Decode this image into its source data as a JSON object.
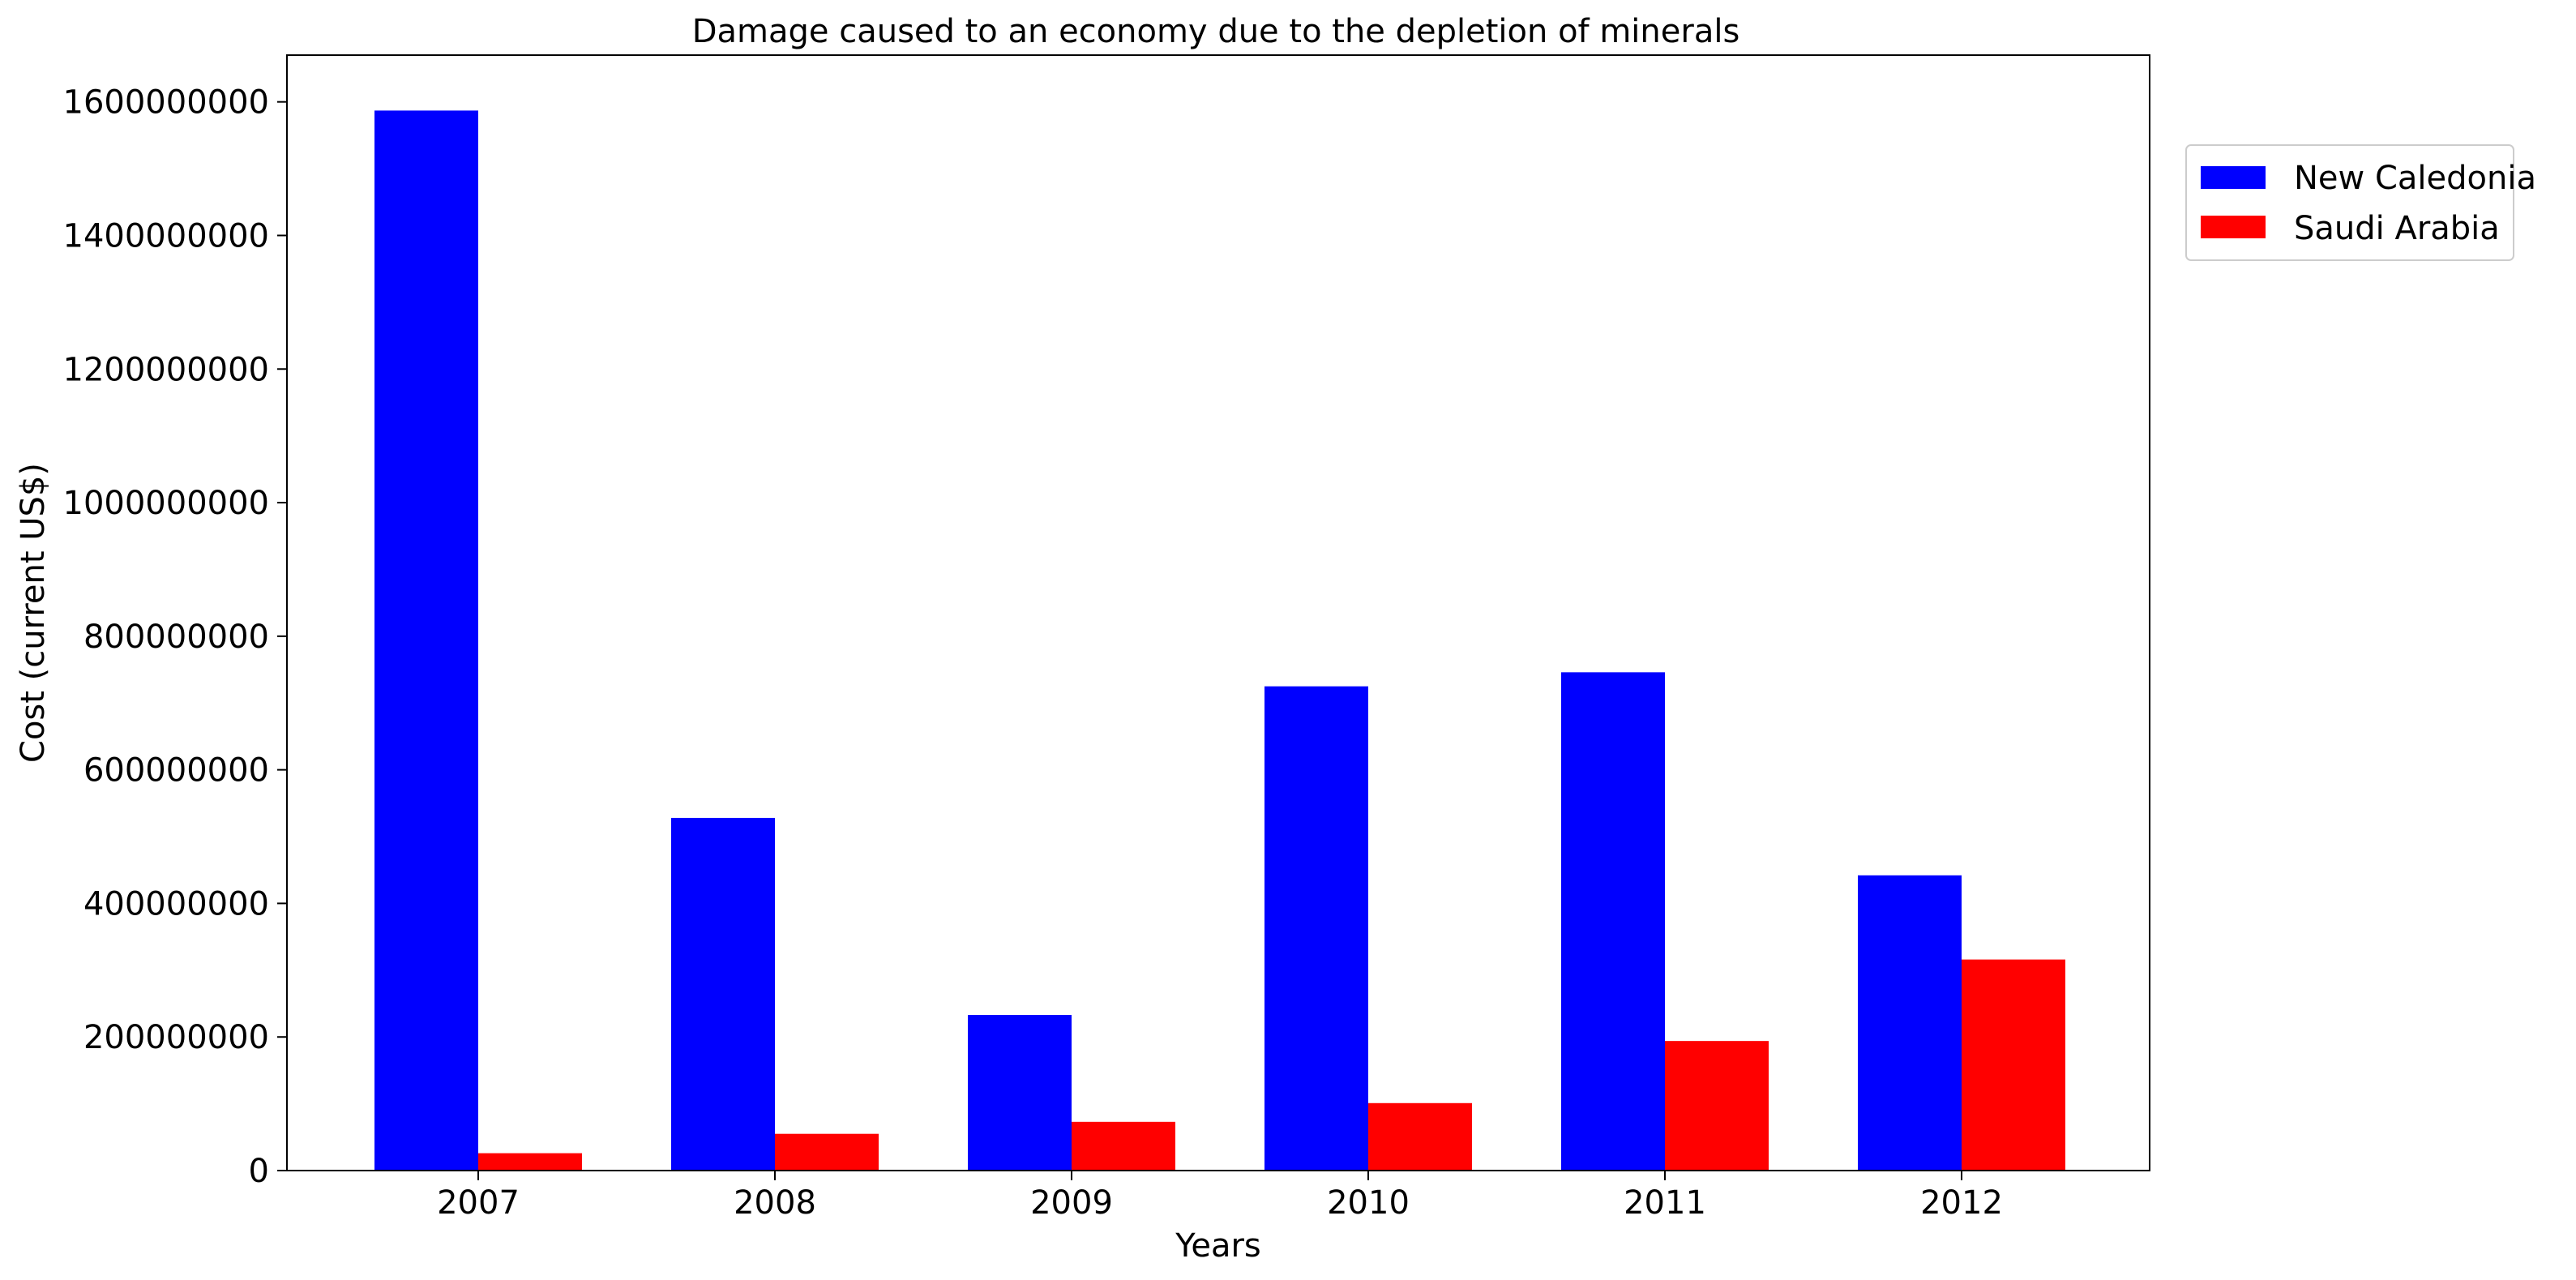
{
  "chart_data": {
    "type": "bar",
    "title": "Damage caused to an economy due to the depletion of minerals",
    "xlabel": "Years",
    "ylabel": "Cost (current US$)",
    "categories": [
      "2007",
      "2008",
      "2009",
      "2010",
      "2011",
      "2012"
    ],
    "ylim": [
      0,
      1670000000
    ],
    "yticks": [
      0,
      200000000,
      400000000,
      600000000,
      800000000,
      1000000000,
      1200000000,
      1400000000,
      1600000000
    ],
    "ytick_labels": [
      "0",
      "200000000",
      "400000000",
      "600000000",
      "800000000",
      "1000000000",
      "1200000000",
      "1400000000",
      "1600000000"
    ],
    "grid": false,
    "legend_position": "right, outside plot, upper",
    "series": [
      {
        "name": "New Caledonia",
        "color": "#0000ff",
        "values": [
          1587000000,
          528000000,
          233000000,
          725000000,
          746000000,
          442000000
        ]
      },
      {
        "name": "Saudi Arabia",
        "color": "#ff0000",
        "values": [
          26000000,
          55000000,
          73000000,
          101000000,
          194000000,
          316000000
        ]
      }
    ]
  }
}
